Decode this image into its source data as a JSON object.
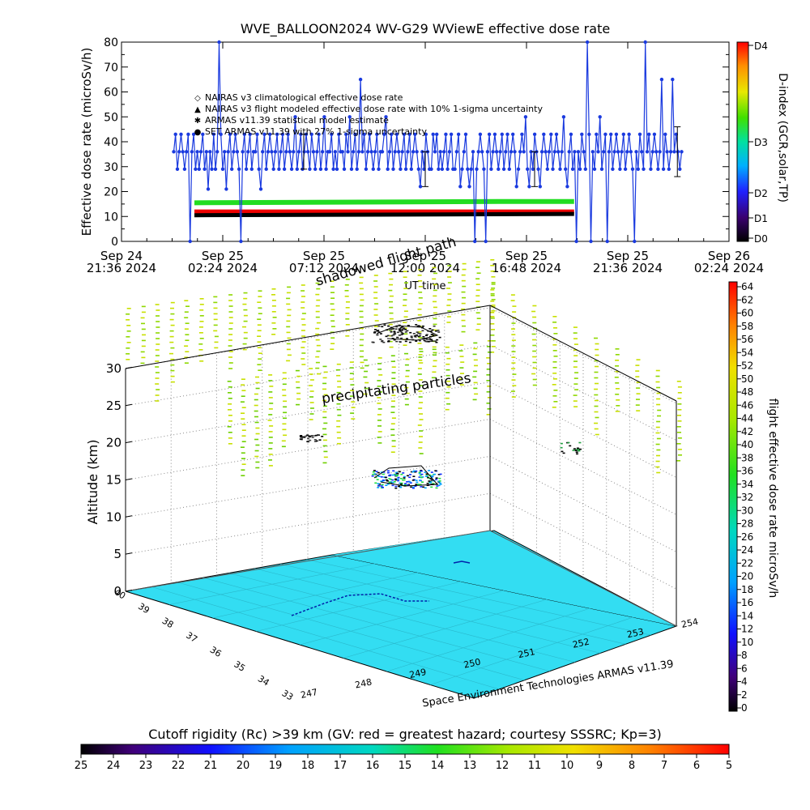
{
  "chart_data": [
    {
      "type": "line",
      "title": "WVE_BALLOON2024 WV-G29 WViewE effective dose rate",
      "ylabel": "Effective dose rate (microSv/h)",
      "xlabel": "UT time",
      "ylim": [
        0,
        80
      ],
      "yticks": [
        "0",
        "10",
        "20",
        "30",
        "40",
        "50",
        "60",
        "70",
        "80"
      ],
      "xticks": [
        {
          "top": "Sep 24",
          "bottom": "21:36 2024"
        },
        {
          "top": "Sep 25",
          "bottom": "02:24 2024"
        },
        {
          "top": "Sep 25",
          "bottom": "07:12 2024"
        },
        {
          "top": "Sep 25",
          "bottom": "12:00 2024"
        },
        {
          "top": "Sep 25",
          "bottom": "16:48 2024"
        },
        {
          "top": "Sep 25",
          "bottom": "21:36 2024"
        },
        {
          "top": "Sep 26",
          "bottom": "02:24 2024"
        }
      ],
      "legend": [
        {
          "symbol": "◇",
          "color": "#dd0000",
          "label": "NAIRAS v3 climatological effective dose rate"
        },
        {
          "symbol": "▲",
          "color": "#000000",
          "label": "NAIRAS v3 flight modeled effective dose rate with 10% 1-sigma uncertainty"
        },
        {
          "symbol": "✱",
          "color": "#22dd22",
          "label": "ARMAS v11.39 statistical model estimate"
        },
        {
          "symbol": "●",
          "color": "#1a3adf",
          "label": "SET ARMAS v11.39 with 27% 1-sigma uncertainty"
        }
      ],
      "series": [
        {
          "name": "ARMAS v11.39 statistical model estimate",
          "color": "#22dd22",
          "x": [
            0.12,
            0.62,
            0.745
          ],
          "values": [
            15.5,
            16.0,
            16.0
          ]
        },
        {
          "name": "NAIRAS v3 climatological effective dose rate",
          "color": "#ee0000",
          "x": [
            0.12,
            0.745
          ],
          "values": [
            12.0,
            12.0
          ]
        },
        {
          "name": "NAIRAS v3 flight modeled effective dose rate with 10% 1-sigma uncertainty",
          "color": "#000000",
          "x": [
            0.12,
            0.745
          ],
          "values": [
            10.5,
            11.0
          ]
        },
        {
          "name": "SET ARMAS v11.39 with 27% 1-sigma uncertainty",
          "color": "#1a3adf",
          "values": [
            36,
            43,
            29,
            36,
            43,
            36,
            29,
            36,
            43,
            0,
            36,
            43,
            29,
            36,
            29,
            36,
            43,
            29,
            36,
            21,
            36,
            29,
            43,
            29,
            36,
            80,
            43,
            29,
            36,
            21,
            36,
            43,
            29,
            36,
            43,
            36,
            29,
            0,
            36,
            43,
            29,
            36,
            43,
            29,
            36,
            36,
            43,
            29,
            21,
            36,
            43,
            29,
            36,
            43,
            36,
            29,
            36,
            43,
            29,
            36,
            43,
            29,
            36,
            43,
            36,
            29,
            36,
            50,
            29,
            36,
            43,
            29,
            36,
            43,
            36,
            29,
            43,
            36,
            29,
            36,
            43,
            29,
            36,
            50,
            29,
            36,
            36,
            43,
            29,
            36,
            29,
            43,
            36,
            36,
            29,
            43,
            36,
            50,
            29,
            36,
            43,
            29,
            36,
            65,
            36,
            43,
            29,
            36,
            43,
            36,
            29,
            36,
            43,
            29,
            36,
            36,
            43,
            50,
            29,
            36,
            43,
            29,
            36,
            43,
            36,
            29,
            36,
            43,
            29,
            36,
            43,
            29,
            36,
            43,
            36,
            29,
            22,
            36,
            29,
            43,
            36,
            29,
            29,
            43,
            36,
            43,
            29,
            36,
            29,
            36,
            43,
            29,
            36,
            43,
            29,
            29,
            36,
            43,
            22,
            29,
            36,
            43,
            29,
            22,
            29,
            36,
            0,
            29,
            36,
            43,
            36,
            29,
            0,
            36,
            43,
            29,
            36,
            43,
            36,
            29,
            36,
            43,
            29,
            36,
            43,
            29,
            36,
            43,
            36,
            22,
            29,
            36,
            43,
            36,
            50,
            29,
            22,
            36,
            29,
            43,
            36,
            29,
            22,
            36,
            43,
            36,
            29,
            36,
            43,
            29,
            36,
            43,
            36,
            29,
            36,
            50,
            29,
            22,
            36,
            43,
            29,
            36,
            0,
            36,
            29,
            43,
            36,
            29,
            80,
            43,
            0,
            36,
            29,
            43,
            36,
            50,
            29,
            36,
            43,
            0,
            36,
            43,
            29,
            36,
            43,
            36,
            29,
            36,
            43,
            29,
            36,
            43,
            36,
            29,
            0,
            36,
            29,
            43,
            36,
            29,
            80,
            36,
            43,
            29,
            36,
            43,
            36,
            29,
            36,
            65,
            29,
            43,
            36,
            29,
            36,
            65,
            36,
            43,
            36,
            29,
            36
          ]
        }
      ],
      "colorbar": {
        "label": "D-index (GCR,solar,TP)",
        "ticks": [
          "D0",
          "D1",
          "D2",
          "D3",
          "D4"
        ]
      }
    },
    {
      "type": "scatter",
      "title": "",
      "zlabel": "Altitude (km)",
      "zticks": [
        "0",
        "5",
        "10",
        "15",
        "20",
        "25",
        "30"
      ],
      "lat_ticks": [
        "40",
        "39",
        "38",
        "37",
        "36",
        "35",
        "34",
        "33"
      ],
      "lon_ticks": [
        "247",
        "248",
        "249",
        "250",
        "251",
        "252",
        "253",
        "254"
      ],
      "annotations": [
        "shadowed flight path",
        "precipitating particles"
      ],
      "credit": "Space Environment Technologies ARMAS v11.39",
      "colorbar": {
        "label": "flight effective dose rate microSv/h",
        "ticks": [
          "0",
          "2",
          "4",
          "6",
          "8",
          "10",
          "12",
          "14",
          "16",
          "18",
          "20",
          "22",
          "24",
          "26",
          "28",
          "30",
          "32",
          "34",
          "36",
          "38",
          "40",
          "42",
          "44",
          "46",
          "48",
          "50",
          "52",
          "54",
          "56",
          "58",
          "60",
          "62",
          "64"
        ]
      }
    },
    {
      "type": "heatmap",
      "title": "Cutoff rigidity (Rc) >39 km (GV: red = greatest hazard; courtesy SSSRC; Kp=3)",
      "ticks": [
        "25",
        "24",
        "23",
        "22",
        "21",
        "20",
        "19",
        "18",
        "17",
        "16",
        "15",
        "14",
        "13",
        "12",
        "11",
        "10",
        "9",
        "8",
        "7",
        "6",
        "5"
      ]
    }
  ],
  "colors": {
    "armas": "#1a3adf",
    "armas_model": "#22dd22",
    "nairas_clim": "#ee0000",
    "nairas_flight": "#000000",
    "ground": "#33ddf2",
    "precip": "#c8e000"
  }
}
